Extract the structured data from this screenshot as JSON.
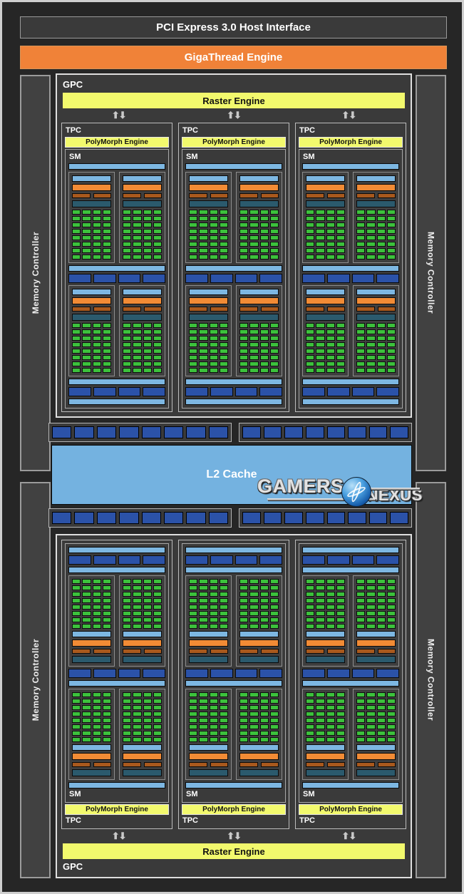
{
  "header": {
    "pci_label": "PCI Express 3.0 Host Interface",
    "gigathread_label": "GigaThread Engine"
  },
  "labels": {
    "gpc": "GPC",
    "tpc": "TPC",
    "sm": "SM",
    "raster_engine": "Raster Engine",
    "polymorph_engine": "PolyMorph Engine",
    "l2_cache": "L2 Cache",
    "memory_controller": "Memory Controller"
  },
  "icons": {
    "updown_arrows": "⬆⬇"
  },
  "watermark": {
    "word1": "GAMERS",
    "word2": "NEXUS"
  },
  "colors": {
    "background": "#262626",
    "panel": "#3A3A3A",
    "frame_border": "#CFCFCF",
    "orange": "#F08238",
    "yellow": "#F2F96D",
    "sky_blue": "#7DB7E2",
    "l2_blue": "#74B2E0",
    "royal_blue": "#2B52A8",
    "scheduler_orange": "#F28B35",
    "dispatch_rust": "#A9591D",
    "register_teal": "#2B5A6D",
    "core_green": "#3CC13C",
    "arrow_gray": "#C9C9C9"
  },
  "structure": {
    "gpc_count": 2,
    "tpc_per_gpc": 3,
    "sm_per_tpc": 1,
    "core_grids_per_sm": 4,
    "core_grid_cols": 4,
    "core_grid_rows": 8,
    "ldst_segments_per_row": 4,
    "rop_clusters": 4,
    "rop_segments_per_cluster": 8,
    "memory_controllers": 4
  }
}
